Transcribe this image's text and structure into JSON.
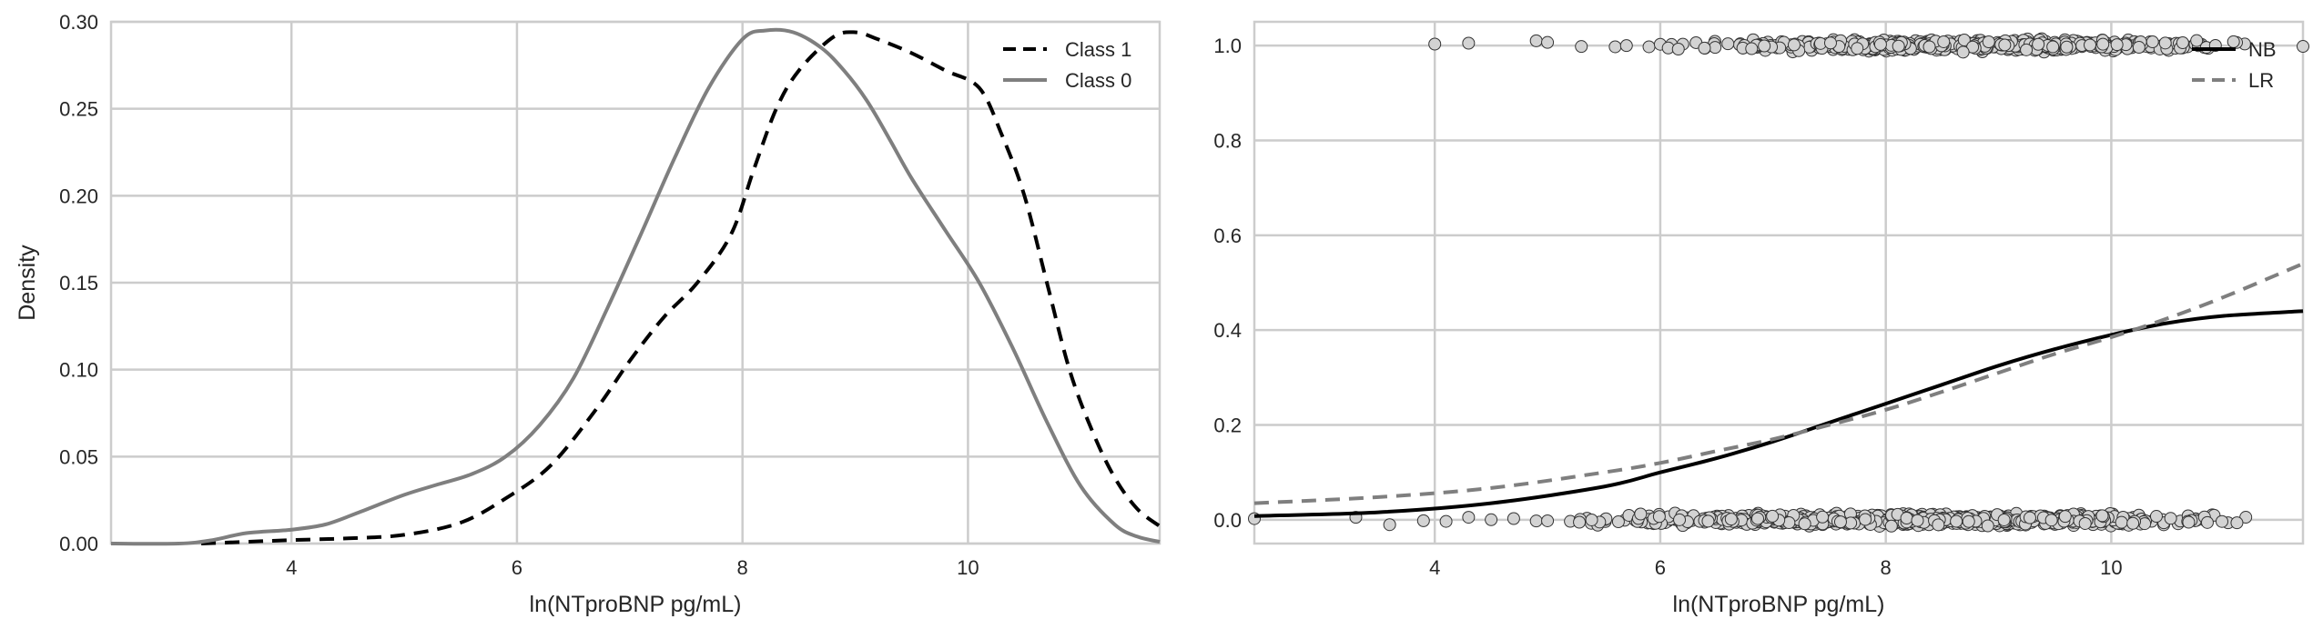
{
  "chart_data": [
    {
      "type": "line",
      "xlabel": "ln(NTproBNP pg/mL)",
      "ylabel": "Density",
      "xlim": [
        2.4,
        11.7
      ],
      "ylim": [
        0,
        0.3
      ],
      "xticks": [
        4,
        6,
        8,
        10
      ],
      "yticks": [
        0.0,
        0.05,
        0.1,
        0.15,
        0.2,
        0.25,
        0.3
      ],
      "grid": true,
      "legend_position": "top-right",
      "series": [
        {
          "name": "Class 1",
          "style": "dashed",
          "color": "#000000",
          "x": [
            3.2,
            3.6,
            4.0,
            4.5,
            5.0,
            5.5,
            5.9,
            6.3,
            6.7,
            7.0,
            7.3,
            7.6,
            7.9,
            8.1,
            8.3,
            8.5,
            8.8,
            9.0,
            9.2,
            9.5,
            9.8,
            10.1,
            10.3,
            10.5,
            10.7,
            10.9,
            11.1,
            11.3,
            11.5,
            11.7
          ],
          "y": [
            0.0,
            0.001,
            0.002,
            0.003,
            0.005,
            0.012,
            0.026,
            0.045,
            0.077,
            0.105,
            0.13,
            0.15,
            0.178,
            0.215,
            0.25,
            0.272,
            0.291,
            0.294,
            0.29,
            0.282,
            0.272,
            0.262,
            0.235,
            0.2,
            0.15,
            0.1,
            0.065,
            0.038,
            0.02,
            0.01
          ]
        },
        {
          "name": "Class 0",
          "style": "solid",
          "color": "#7f7f7f",
          "x": [
            2.4,
            3.0,
            3.3,
            3.6,
            4.0,
            4.3,
            4.6,
            5.0,
            5.3,
            5.6,
            5.9,
            6.2,
            6.5,
            6.8,
            7.1,
            7.4,
            7.7,
            8.0,
            8.2,
            8.45,
            8.7,
            8.9,
            9.1,
            9.3,
            9.5,
            9.8,
            10.1,
            10.4,
            10.7,
            11.0,
            11.3,
            11.5,
            11.7
          ],
          "y": [
            0.0,
            0.0,
            0.002,
            0.006,
            0.008,
            0.011,
            0.018,
            0.028,
            0.034,
            0.04,
            0.05,
            0.068,
            0.095,
            0.135,
            0.178,
            0.222,
            0.262,
            0.29,
            0.295,
            0.294,
            0.285,
            0.272,
            0.255,
            0.233,
            0.21,
            0.18,
            0.15,
            0.112,
            0.07,
            0.033,
            0.011,
            0.004,
            0.001
          ]
        }
      ]
    },
    {
      "type": "scatter",
      "xlabel": "ln(NTproBNP pg/mL)",
      "ylabel": "",
      "xlim": [
        2.4,
        11.7
      ],
      "ylim": [
        -0.05,
        1.05
      ],
      "xticks": [
        4,
        6,
        8,
        10
      ],
      "yticks": [
        0.0,
        0.2,
        0.4,
        0.6,
        0.8,
        1.0
      ],
      "grid": true,
      "legend_position": "top-right",
      "series": [
        {
          "name": "NB",
          "type": "line",
          "style": "solid",
          "color": "#000000",
          "x": [
            2.4,
            3.5,
            4.5,
            5.5,
            6.0,
            6.5,
            7.0,
            7.5,
            8.0,
            8.5,
            9.0,
            9.5,
            10.0,
            10.5,
            11.0,
            11.7
          ],
          "y": [
            0.008,
            0.016,
            0.035,
            0.07,
            0.1,
            0.13,
            0.165,
            0.205,
            0.245,
            0.285,
            0.325,
            0.36,
            0.39,
            0.415,
            0.43,
            0.44
          ]
        },
        {
          "name": "LR",
          "type": "line",
          "style": "dashed",
          "color": "#7f7f7f",
          "x": [
            2.4,
            3.5,
            4.5,
            5.5,
            6.0,
            6.5,
            7.0,
            7.5,
            8.0,
            8.5,
            9.0,
            9.5,
            10.0,
            10.5,
            11.0,
            11.7
          ],
          "y": [
            0.035,
            0.048,
            0.067,
            0.1,
            0.12,
            0.145,
            0.17,
            0.2,
            0.232,
            0.27,
            0.31,
            0.35,
            0.385,
            0.425,
            0.47,
            0.54
          ]
        }
      ],
      "points": {
        "color": "#d3d3d3",
        "edge_color": "#333333",
        "class_1": {
          "y": 1,
          "x_range": [
            3.9,
            11.7
          ],
          "dense_range": [
            6.3,
            11.2
          ],
          "count": 560,
          "sparse_x": [
            4.0,
            4.3,
            4.9,
            5.0,
            5.3,
            5.6,
            5.7,
            5.9,
            6.0,
            6.1,
            6.2,
            11.7
          ]
        },
        "class_0": {
          "y": 0,
          "x_range": [
            2.4,
            11.2
          ],
          "dense_range": [
            5.2,
            11.2
          ],
          "count": 820,
          "sparse_x": [
            2.4,
            3.3,
            3.6,
            3.9,
            4.1,
            4.3,
            4.5,
            4.7,
            4.9,
            5.0
          ]
        }
      }
    }
  ]
}
